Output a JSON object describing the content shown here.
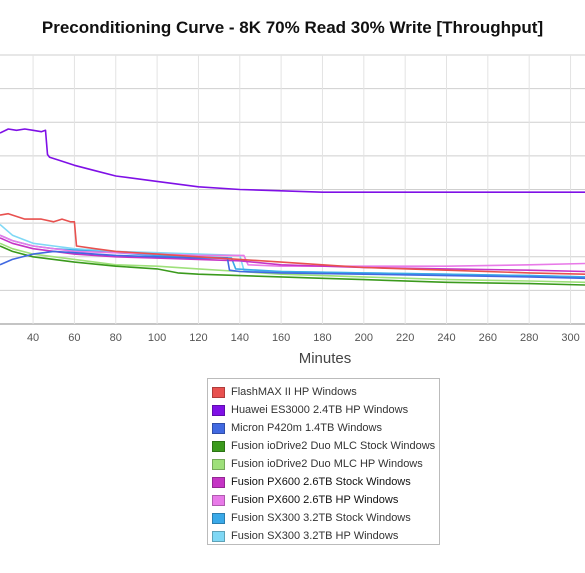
{
  "chart_data": {
    "type": "line",
    "title": "Preconditioning Curve - 8K 70% Read 30% Write [Throughput]",
    "xlabel": "Minutes",
    "ylabel": "",
    "x_ticks": [
      40,
      60,
      80,
      100,
      120,
      140,
      160,
      180,
      200,
      220,
      240,
      260,
      280,
      300
    ],
    "xlim": [
      24,
      307
    ],
    "ylim": [
      0,
      100
    ],
    "grid": true,
    "legend_position": "bottom",
    "series": [
      {
        "name": "FlashMAX II HP Windows",
        "color": "#e8514f",
        "x": [
          24,
          28,
          36,
          44,
          50,
          54,
          58,
          60,
          61,
          70,
          80,
          100,
          120,
          140,
          160,
          180,
          200,
          240,
          280,
          307
        ],
        "y": [
          40.5,
          41,
          39,
          39,
          38,
          39,
          38,
          38,
          29,
          28,
          27,
          26,
          25,
          24,
          23,
          22,
          21,
          20,
          19,
          18.5
        ]
      },
      {
        "name": "Huawei ES3000 2.4TB HP Windows",
        "color": "#7f10e6",
        "x": [
          24,
          28,
          32,
          36,
          40,
          44,
          46,
          47,
          48,
          52,
          60,
          70,
          80,
          100,
          120,
          140,
          160,
          180,
          200,
          240,
          280,
          307
        ],
        "y": [
          71,
          72.5,
          72,
          72.5,
          72,
          71.5,
          72,
          63,
          62,
          61,
          59,
          57,
          55,
          53,
          51,
          50,
          49.5,
          49,
          49,
          49,
          49,
          49
        ]
      },
      {
        "name": "Micron P420m 1.4TB Windows",
        "color": "#4169e1",
        "x": [
          24,
          30,
          40,
          50,
          60,
          70,
          80,
          100,
          120,
          134,
          135,
          140,
          160,
          200,
          240,
          280,
          307
        ],
        "y": [
          22,
          24,
          26,
          27,
          26.5,
          26,
          25.5,
          25,
          24.5,
          24.5,
          20,
          19.5,
          19,
          18.5,
          18,
          17.5,
          17
        ]
      },
      {
        "name": "Fusion ioDrive2 Duo MLC Stock Windows",
        "color": "#3b9a1d",
        "x": [
          24,
          30,
          40,
          60,
          80,
          100,
          110,
          120,
          140,
          160,
          180,
          200,
          240,
          280,
          307
        ],
        "y": [
          29,
          27,
          25,
          23,
          21.5,
          20.5,
          19,
          18.5,
          18,
          17.5,
          17,
          16.5,
          15.5,
          15,
          14.5
        ]
      },
      {
        "name": "Fusion ioDrive2 Duo MLC HP Windows",
        "color": "#9ee07a",
        "x": [
          24,
          30,
          40,
          60,
          80,
          100,
          120,
          140,
          160,
          180,
          200,
          240,
          280,
          307
        ],
        "y": [
          30,
          28,
          26,
          24,
          22,
          21.5,
          20.5,
          19.5,
          18.5,
          18,
          17.5,
          16.5,
          16,
          15.5
        ]
      },
      {
        "name": "Fusion PX600 2.6TB Stock Windows",
        "color": "#c534c5",
        "x": [
          24,
          30,
          40,
          60,
          80,
          100,
          120,
          140,
          160,
          200,
          240,
          280,
          307
        ],
        "y": [
          32,
          30,
          28,
          26,
          25,
          24.5,
          24,
          23.5,
          22,
          21,
          20.5,
          20,
          19.5
        ]
      },
      {
        "name": "Fusion PX600 2.6TB HP Windows",
        "color": "#e87ae8",
        "x": [
          24,
          30,
          40,
          60,
          80,
          100,
          120,
          140,
          142,
          144,
          160,
          200,
          240,
          280,
          307
        ],
        "y": [
          33,
          31,
          29,
          27,
          26.5,
          26,
          25.5,
          25.5,
          25.5,
          22,
          21.5,
          21.5,
          21.5,
          22,
          22.5
        ]
      },
      {
        "name": "Fusion SX300 3.2TB Stock Windows",
        "color": "#3aa9e8",
        "x": [
          24,
          30,
          40,
          50,
          60,
          80,
          100,
          120,
          136,
          138,
          160,
          200,
          240,
          280,
          307
        ],
        "y": [
          33,
          31,
          29,
          28,
          27.5,
          26.5,
          25.5,
          25,
          24.5,
          20.5,
          19.5,
          19,
          18.5,
          18,
          17.5
        ]
      },
      {
        "name": "Fusion SX300 3.2TB HP Windows",
        "color": "#7fd8f5",
        "x": [
          24,
          30,
          40,
          50,
          60,
          80,
          100,
          120,
          140,
          142,
          160,
          200,
          240,
          280,
          307
        ],
        "y": [
          37,
          33,
          30,
          29,
          28,
          27,
          26.5,
          26,
          25.5,
          20,
          19.5,
          19,
          18.5,
          18,
          17.5
        ]
      }
    ]
  }
}
